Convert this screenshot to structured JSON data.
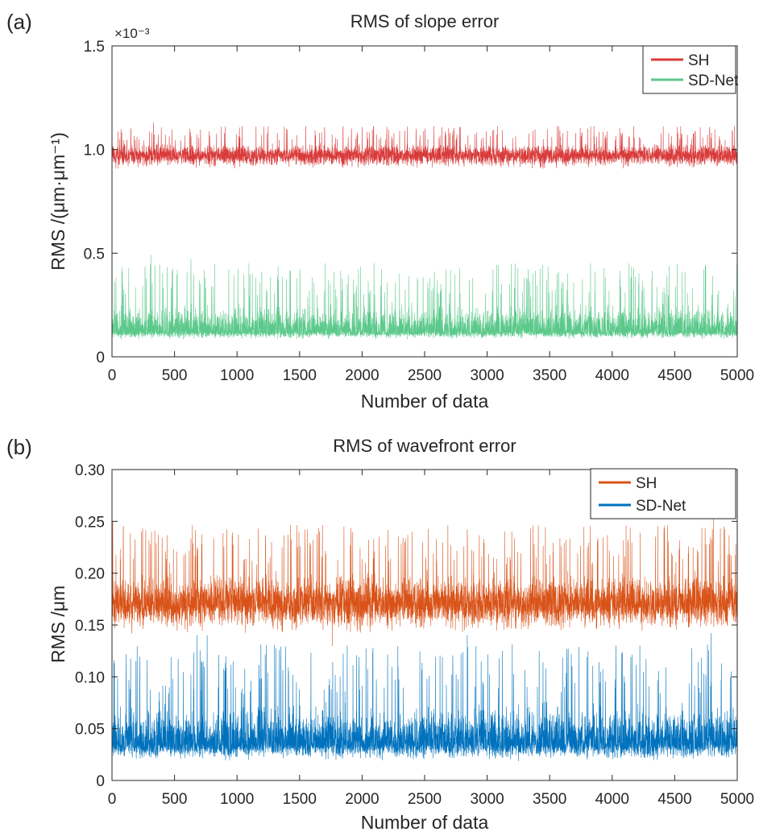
{
  "chart_data": [
    {
      "type": "line",
      "panel_label": "(a)",
      "title": "RMS of slope error",
      "xlabel": "Number of data",
      "ylabel": "RMS /(μm·μm⁻¹)",
      "y_multiplier": "×10⁻³",
      "xlim": [
        0,
        5000
      ],
      "ylim": [
        0,
        1.5
      ],
      "x_ticks": [
        "0",
        "500",
        "1000",
        "1500",
        "2000",
        "2500",
        "3000",
        "3500",
        "4000",
        "4500",
        "5000"
      ],
      "y_ticks": [
        "0",
        "0.5",
        "1.0",
        "1.5"
      ],
      "y_tick_values": [
        0,
        0.5,
        1.0,
        1.5
      ],
      "n_points": 5000,
      "legend_position": "top-right",
      "grid": false,
      "series": [
        {
          "name": "SH",
          "color": "#d93a3a",
          "baseline": 0.97,
          "noise_range": [
            0.88,
            1.13
          ],
          "peaks": [
            [
              330,
              1.13
            ],
            [
              620,
              1.1
            ],
            [
              3570,
              1.11
            ],
            [
              4080,
              1.08
            ],
            [
              4600,
              1.07
            ]
          ]
        },
        {
          "name": "SD-Net",
          "color": "#5cc98b",
          "baseline": 0.12,
          "noise_range": [
            0.07,
            0.49
          ],
          "peaks": [
            [
              310,
              0.49
            ],
            [
              630,
              0.47
            ],
            [
              1150,
              0.38
            ],
            [
              1880,
              0.35
            ],
            [
              3560,
              0.4
            ],
            [
              4210,
              0.35
            ],
            [
              4640,
              0.33
            ],
            [
              4850,
              0.32
            ]
          ]
        }
      ]
    },
    {
      "type": "line",
      "panel_label": "(b)",
      "title": "RMS of wavefront error",
      "xlabel": "Number of data",
      "ylabel": "RMS /μm",
      "xlim": [
        0,
        5000
      ],
      "ylim": [
        0,
        0.3
      ],
      "x_ticks": [
        "0",
        "500",
        "1000",
        "1500",
        "2000",
        "2500",
        "3000",
        "3500",
        "4000",
        "4500",
        "5000"
      ],
      "y_ticks": [
        "0",
        "0.05",
        "0.10",
        "0.15",
        "0.20",
        "0.25",
        "0.30"
      ],
      "y_tick_values": [
        0,
        0.05,
        0.1,
        0.15,
        0.2,
        0.25,
        0.3
      ],
      "n_points": 5000,
      "legend_position": "top-right",
      "grid": false,
      "series": [
        {
          "name": "SH",
          "color": "#d95319",
          "baseline": 0.17,
          "noise_range": [
            0.13,
            0.255
          ],
          "peaks": [
            [
              5,
              0.25
            ],
            [
              630,
              0.233
            ],
            [
              960,
              0.236
            ],
            [
              2050,
              0.232
            ],
            [
              2840,
              0.242
            ],
            [
              4810,
              0.254
            ],
            [
              1760,
              0.13
            ]
          ]
        },
        {
          "name": "SD-Net",
          "color": "#0072bd",
          "baseline": 0.035,
          "noise_range": [
            0.012,
            0.142
          ],
          "peaks": [
            [
              680,
              0.14
            ],
            [
              760,
              0.14
            ],
            [
              1190,
              0.131
            ],
            [
              1880,
              0.13
            ],
            [
              2840,
              0.14
            ],
            [
              3200,
              0.131
            ],
            [
              4220,
              0.13
            ],
            [
              4790,
              0.142
            ]
          ]
        }
      ]
    }
  ]
}
